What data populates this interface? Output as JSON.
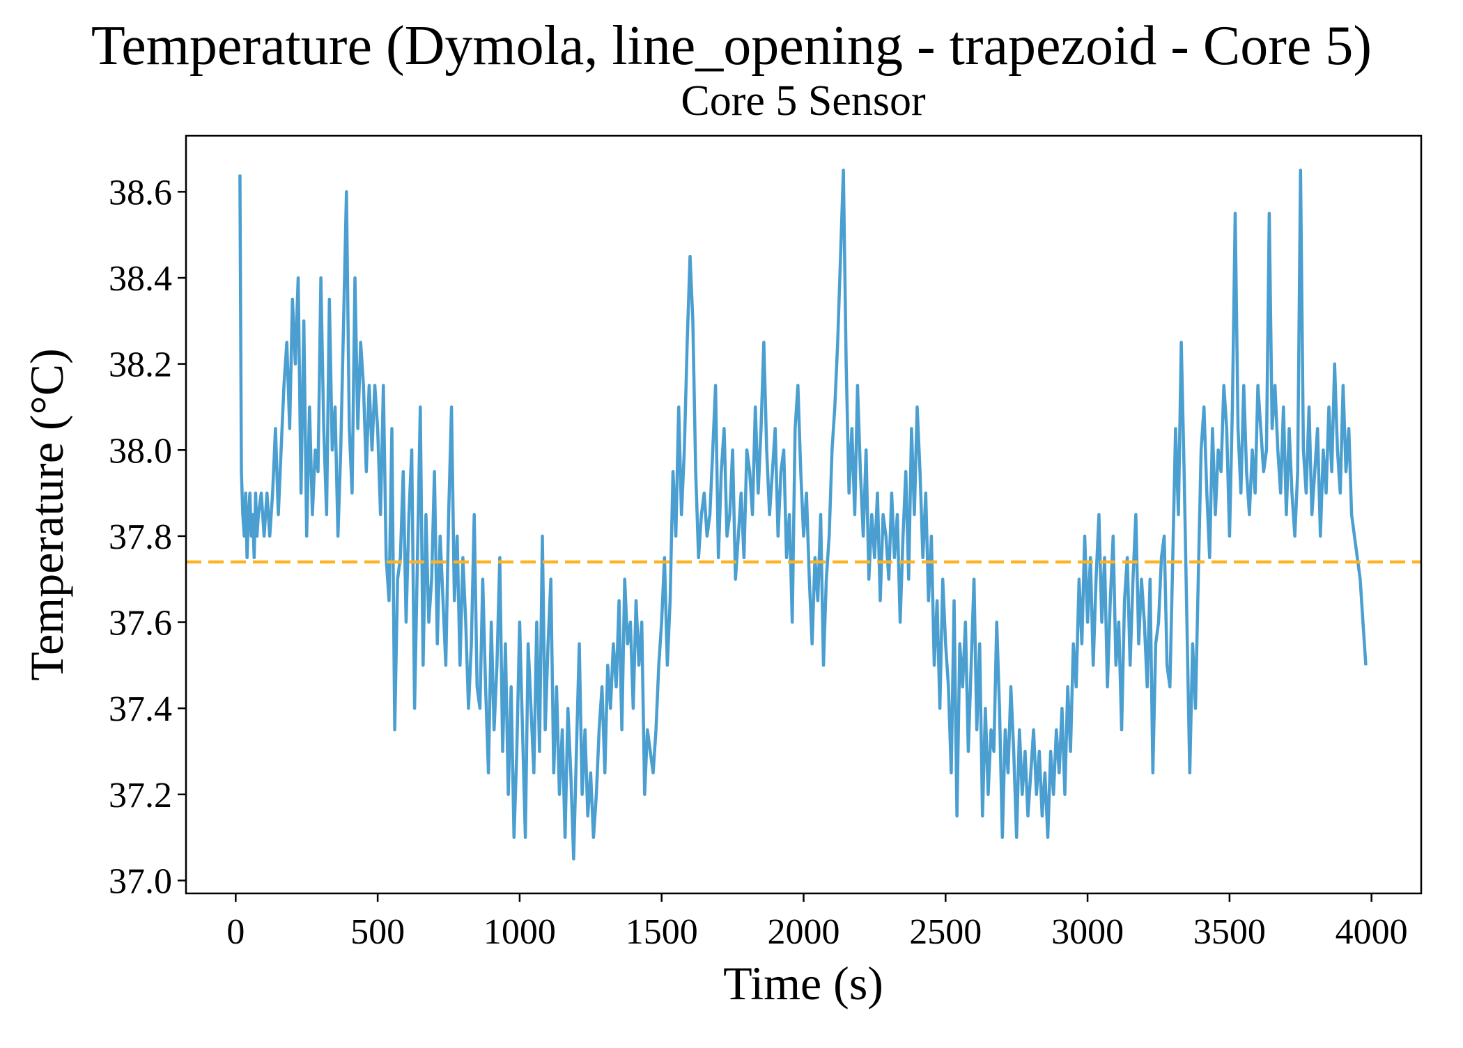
{
  "chart_data": {
    "type": "line",
    "suptitle": "Temperature (Dymola, line_opening - trapezoid - Core 5)",
    "title": "Core 5 Sensor",
    "xlabel": "Time (s)",
    "ylabel": "Temperature (°C)",
    "xlim": [
      -175,
      4175
    ],
    "ylim": [
      36.97,
      38.73
    ],
    "xticks": [
      0,
      500,
      1000,
      1500,
      2000,
      2500,
      3000,
      3500,
      4000
    ],
    "xtick_labels": [
      "0",
      "500",
      "1000",
      "1500",
      "2000",
      "2500",
      "3000",
      "3500",
      "4000"
    ],
    "yticks": [
      37.0,
      37.2,
      37.4,
      37.6,
      37.8,
      38.0,
      38.2,
      38.4,
      38.6
    ],
    "ytick_labels": [
      "37.0",
      "37.2",
      "37.4",
      "37.6",
      "37.8",
      "38.0",
      "38.2",
      "38.4",
      "38.6"
    ],
    "grid": false,
    "series": [
      {
        "color": "#4a9fd0",
        "x": [
          15,
          20,
          25,
          30,
          35,
          40,
          45,
          50,
          55,
          60,
          65,
          70,
          75,
          80,
          90,
          100,
          110,
          120,
          130,
          140,
          150,
          160,
          170,
          180,
          190,
          200,
          210,
          220,
          230,
          240,
          250,
          260,
          270,
          280,
          290,
          300,
          310,
          320,
          330,
          340,
          350,
          360,
          370,
          380,
          390,
          400,
          410,
          420,
          430,
          440,
          450,
          460,
          470,
          480,
          490,
          500,
          510,
          520,
          530,
          540,
          550,
          560,
          570,
          580,
          590,
          600,
          610,
          620,
          630,
          640,
          650,
          660,
          670,
          680,
          690,
          700,
          710,
          720,
          730,
          740,
          750,
          760,
          770,
          780,
          790,
          800,
          810,
          820,
          830,
          840,
          850,
          860,
          870,
          880,
          890,
          900,
          910,
          920,
          930,
          940,
          950,
          960,
          970,
          980,
          990,
          1000,
          1010,
          1020,
          1030,
          1040,
          1050,
          1060,
          1070,
          1080,
          1090,
          1100,
          1110,
          1120,
          1130,
          1140,
          1150,
          1160,
          1170,
          1180,
          1190,
          1200,
          1210,
          1220,
          1230,
          1240,
          1250,
          1260,
          1270,
          1280,
          1290,
          1300,
          1310,
          1320,
          1330,
          1340,
          1350,
          1360,
          1370,
          1380,
          1390,
          1400,
          1410,
          1420,
          1430,
          1440,
          1450,
          1460,
          1470,
          1480,
          1490,
          1500,
          1510,
          1520,
          1530,
          1540,
          1550,
          1560,
          1570,
          1580,
          1590,
          1600,
          1610,
          1620,
          1630,
          1640,
          1650,
          1660,
          1670,
          1680,
          1690,
          1700,
          1710,
          1720,
          1730,
          1740,
          1750,
          1760,
          1770,
          1780,
          1790,
          1800,
          1810,
          1820,
          1830,
          1840,
          1850,
          1860,
          1870,
          1880,
          1890,
          1900,
          1910,
          1920,
          1930,
          1940,
          1950,
          1960,
          1970,
          1980,
          1990,
          2000,
          2010,
          2020,
          2030,
          2040,
          2050,
          2060,
          2070,
          2080,
          2090,
          2100,
          2110,
          2120,
          2130,
          2140,
          2150,
          2160,
          2170,
          2180,
          2190,
          2200,
          2210,
          2220,
          2230,
          2240,
          2250,
          2260,
          2270,
          2280,
          2290,
          2300,
          2310,
          2320,
          2330,
          2340,
          2350,
          2360,
          2370,
          2380,
          2390,
          2400,
          2410,
          2420,
          2430,
          2440,
          2450,
          2460,
          2470,
          2480,
          2490,
          2500,
          2510,
          2520,
          2530,
          2540,
          2550,
          2560,
          2570,
          2580,
          2590,
          2600,
          2610,
          2620,
          2630,
          2640,
          2650,
          2660,
          2670,
          2680,
          2690,
          2700,
          2710,
          2720,
          2730,
          2740,
          2750,
          2760,
          2770,
          2780,
          2790,
          2800,
          2810,
          2820,
          2830,
          2840,
          2850,
          2860,
          2870,
          2880,
          2890,
          2900,
          2910,
          2920,
          2930,
          2940,
          2950,
          2960,
          2970,
          2980,
          2990,
          3000,
          3010,
          3020,
          3030,
          3040,
          3050,
          3060,
          3070,
          3080,
          3090,
          3100,
          3110,
          3120,
          3130,
          3140,
          3150,
          3160,
          3170,
          3180,
          3190,
          3200,
          3210,
          3220,
          3230,
          3240,
          3250,
          3260,
          3270,
          3280,
          3290,
          3300,
          3310,
          3320,
          3330,
          3340,
          3350,
          3360,
          3370,
          3380,
          3390,
          3400,
          3410,
          3420,
          3430,
          3440,
          3450,
          3460,
          3470,
          3480,
          3490,
          3500,
          3510,
          3520,
          3530,
          3540,
          3550,
          3560,
          3570,
          3580,
          3590,
          3600,
          3610,
          3620,
          3630,
          3640,
          3650,
          3660,
          3670,
          3680,
          3690,
          3700,
          3710,
          3720,
          3730,
          3740,
          3750,
          3760,
          3770,
          3780,
          3790,
          3800,
          3810,
          3820,
          3830,
          3840,
          3850,
          3860,
          3870,
          3880,
          3890,
          3900,
          3910,
          3920,
          3930,
          3940,
          3950,
          3960,
          3970,
          3980
        ],
        "y": [
          38.64,
          37.95,
          37.85,
          37.8,
          37.9,
          37.75,
          37.85,
          37.9,
          37.8,
          37.85,
          37.75,
          37.9,
          37.8,
          37.85,
          37.9,
          37.8,
          37.9,
          37.8,
          37.9,
          38.05,
          37.85,
          38.0,
          38.15,
          38.25,
          38.05,
          38.35,
          38.2,
          38.4,
          37.9,
          38.3,
          37.8,
          38.1,
          37.85,
          38.0,
          37.95,
          38.4,
          38.05,
          37.85,
          38.35,
          38.0,
          38.1,
          37.8,
          38.0,
          38.3,
          38.6,
          38.05,
          37.9,
          38.4,
          38.05,
          38.25,
          38.15,
          37.95,
          38.15,
          38.0,
          38.15,
          38.05,
          37.85,
          38.15,
          37.75,
          37.65,
          38.05,
          37.35,
          37.7,
          37.75,
          37.95,
          37.6,
          37.85,
          38.0,
          37.4,
          37.75,
          38.1,
          37.5,
          37.85,
          37.6,
          37.7,
          37.95,
          37.55,
          37.8,
          37.65,
          37.5,
          37.85,
          38.1,
          37.65,
          37.8,
          37.5,
          37.75,
          37.6,
          37.4,
          37.55,
          37.85,
          37.45,
          37.4,
          37.7,
          37.45,
          37.25,
          37.6,
          37.35,
          37.5,
          37.75,
          37.3,
          37.55,
          37.2,
          37.45,
          37.1,
          37.3,
          37.6,
          37.35,
          37.1,
          37.55,
          37.4,
          37.25,
          37.6,
          37.3,
          37.8,
          37.35,
          37.55,
          37.7,
          37.25,
          37.45,
          37.2,
          37.35,
          37.1,
          37.4,
          37.25,
          37.05,
          37.3,
          37.55,
          37.2,
          37.35,
          37.15,
          37.25,
          37.1,
          37.2,
          37.35,
          37.45,
          37.25,
          37.5,
          37.4,
          37.55,
          37.45,
          37.65,
          37.35,
          37.7,
          37.55,
          37.6,
          37.4,
          37.65,
          37.5,
          37.6,
          37.2,
          37.35,
          37.3,
          37.25,
          37.35,
          37.5,
          37.6,
          37.75,
          37.5,
          37.65,
          37.95,
          37.8,
          38.1,
          37.85,
          38.0,
          38.25,
          38.45,
          38.3,
          37.95,
          37.75,
          37.85,
          37.9,
          37.8,
          37.85,
          38.0,
          38.15,
          37.75,
          37.95,
          38.05,
          37.8,
          37.85,
          38.0,
          37.7,
          37.8,
          37.9,
          37.75,
          38.0,
          37.95,
          37.85,
          38.1,
          37.9,
          38.05,
          38.25,
          38.0,
          37.85,
          37.95,
          38.05,
          37.8,
          37.95,
          38.0,
          37.75,
          37.85,
          37.6,
          38.05,
          38.15,
          37.95,
          37.8,
          37.9,
          37.7,
          37.55,
          37.75,
          37.65,
          37.85,
          37.5,
          37.7,
          37.8,
          38.0,
          38.1,
          38.25,
          38.45,
          38.65,
          38.2,
          37.9,
          38.05,
          37.85,
          38.15,
          37.95,
          37.8,
          38.0,
          37.7,
          37.85,
          37.75,
          37.9,
          37.65,
          37.85,
          37.8,
          37.7,
          37.9,
          37.75,
          37.85,
          37.6,
          37.8,
          37.95,
          37.7,
          38.05,
          37.85,
          38.1,
          37.95,
          37.75,
          37.9,
          37.65,
          37.8,
          37.5,
          37.65,
          37.4,
          37.7,
          37.55,
          37.45,
          37.25,
          37.65,
          37.15,
          37.55,
          37.45,
          37.6,
          37.3,
          37.5,
          37.7,
          37.35,
          37.55,
          37.15,
          37.4,
          37.2,
          37.35,
          37.3,
          37.6,
          37.4,
          37.1,
          37.35,
          37.25,
          37.45,
          37.3,
          37.1,
          37.35,
          37.2,
          37.3,
          37.15,
          37.25,
          37.35,
          37.2,
          37.3,
          37.15,
          37.25,
          37.1,
          37.3,
          37.2,
          37.35,
          37.25,
          37.4,
          37.2,
          37.45,
          37.3,
          37.55,
          37.45,
          37.7,
          37.55,
          37.8,
          37.6,
          37.75,
          37.5,
          37.7,
          37.85,
          37.6,
          37.75,
          37.45,
          37.65,
          37.8,
          37.5,
          37.6,
          37.35,
          37.65,
          37.75,
          37.5,
          37.7,
          37.85,
          37.55,
          37.7,
          37.6,
          37.45,
          37.7,
          37.25,
          37.55,
          37.6,
          37.75,
          37.8,
          37.5,
          37.45,
          37.75,
          38.05,
          37.85,
          38.25,
          37.95,
          37.6,
          37.25,
          37.55,
          37.4,
          37.7,
          38.0,
          38.1,
          37.9,
          37.75,
          38.05,
          37.85,
          38.0,
          37.95,
          38.15,
          38.05,
          37.8,
          38.1,
          38.55,
          38.05,
          37.9,
          38.15,
          37.95,
          37.85,
          38.0,
          37.9,
          38.15,
          38.05,
          37.95,
          38.0,
          38.55,
          38.05,
          38.15,
          38.0,
          37.9,
          38.1,
          37.85,
          38.05,
          37.9,
          37.8,
          37.95,
          38.65,
          38.0,
          37.9,
          38.1,
          37.85,
          37.95,
          38.05,
          37.8,
          38.0,
          37.9,
          38.1,
          37.95,
          38.2,
          38.0,
          37.9,
          38.15,
          37.95,
          38.05,
          37.85,
          37.8,
          37.75,
          37.7,
          37.6,
          37.5
        ]
      }
    ],
    "reference_line": {
      "orientation": "horizontal",
      "y": 37.74,
      "style": "dashed",
      "color": "#ffb224"
    }
  }
}
